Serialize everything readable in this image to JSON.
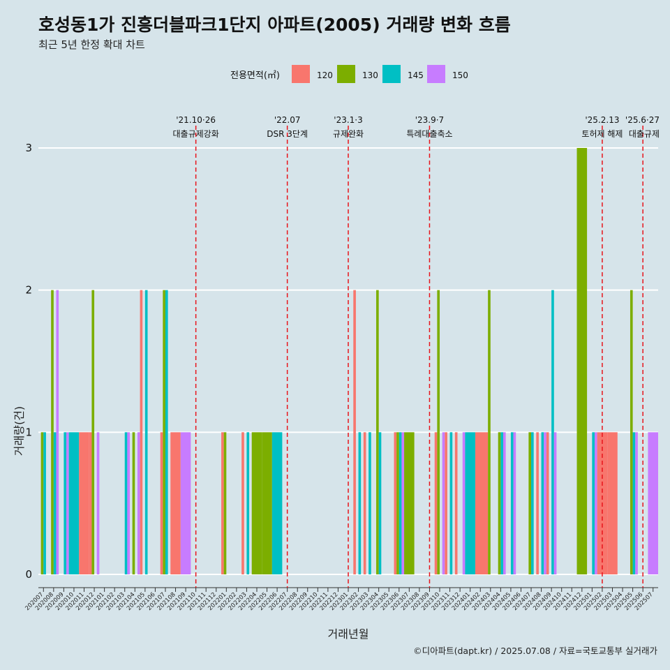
{
  "title": "호성동1가 진흥더블파크1단지 아파트(2005) 거래량 변화 흐름",
  "subtitle": "최근 5년 한정 확대 차트",
  "caption": "©디아파트(dapt.kr) / 2025.07.08 / 자료=국토교통부 실거래가",
  "colors": {
    "120": "#f8766d",
    "130": "#7cae00",
    "145": "#00bfc4",
    "150": "#c77cff"
  },
  "legend": {
    "title": "전용면적(㎡)",
    "position": "top",
    "entries": [
      "120",
      "130",
      "145",
      "150"
    ]
  },
  "chart_data": {
    "type": "bar",
    "xlabel": "거래년월",
    "ylabel": "거래량(건)",
    "ylim": [
      0,
      3
    ],
    "yticks": [
      0,
      1,
      2,
      3
    ],
    "grid": true,
    "categories": [
      "202007",
      "202008",
      "202009",
      "202010",
      "202011",
      "202012",
      "202101",
      "202102",
      "202103",
      "202104",
      "202105",
      "202106",
      "202107",
      "202108",
      "202109",
      "202110",
      "202111",
      "202112",
      "202201",
      "202202",
      "202203",
      "202204",
      "202205",
      "202206",
      "202207",
      "202208",
      "202209",
      "202210",
      "202211",
      "202212",
      "202301",
      "202302",
      "202303",
      "202304",
      "202305",
      "202306",
      "202307",
      "202308",
      "202309",
      "202310",
      "202311",
      "202312",
      "202401",
      "202402",
      "202403",
      "202404",
      "202405",
      "202406",
      "202407",
      "202408",
      "202409",
      "202410",
      "202411",
      "202412",
      "202501",
      "202502",
      "202503",
      "202504",
      "202505",
      "202506",
      "202507"
    ],
    "series": [
      {
        "name": "120",
        "values": [
          0,
          0,
          0,
          0,
          1,
          1,
          0,
          0,
          0,
          0,
          2,
          0,
          1,
          1,
          0,
          0,
          0,
          0,
          1,
          0,
          1,
          0,
          0,
          0,
          0,
          0,
          0,
          0,
          0,
          0,
          0,
          2,
          1,
          0,
          0,
          1,
          0,
          0,
          0,
          1,
          1,
          1,
          0,
          1,
          1,
          0,
          0,
          0,
          0,
          1,
          1,
          0,
          0,
          0,
          0,
          1,
          1,
          0,
          0,
          0,
          0
        ]
      },
      {
        "name": "130",
        "values": [
          1,
          2,
          0,
          0,
          0,
          2,
          0,
          0,
          0,
          1,
          0,
          0,
          2,
          0,
          0,
          0,
          0,
          0,
          1,
          0,
          0,
          1,
          1,
          0,
          0,
          0,
          0,
          0,
          0,
          0,
          0,
          0,
          0,
          2,
          0,
          1,
          1,
          0,
          0,
          2,
          0,
          0,
          0,
          0,
          2,
          1,
          0,
          0,
          1,
          0,
          0,
          0,
          0,
          3,
          0,
          0,
          0,
          0,
          2,
          0,
          0
        ]
      },
      {
        "name": "145",
        "values": [
          1,
          1,
          1,
          1,
          0,
          0,
          0,
          0,
          1,
          0,
          2,
          0,
          2,
          0,
          0,
          0,
          0,
          0,
          0,
          0,
          1,
          0,
          0,
          1,
          0,
          0,
          0,
          0,
          0,
          0,
          0,
          1,
          1,
          1,
          0,
          1,
          0,
          0,
          0,
          0,
          1,
          0,
          1,
          0,
          0,
          1,
          1,
          0,
          1,
          1,
          2,
          0,
          0,
          0,
          1,
          0,
          0,
          0,
          1,
          0,
          0
        ]
      },
      {
        "name": "150",
        "values": [
          0,
          2,
          1,
          0,
          0,
          1,
          0,
          0,
          1,
          1,
          0,
          0,
          0,
          0,
          1,
          0,
          0,
          0,
          0,
          0,
          0,
          0,
          0,
          0,
          0,
          0,
          0,
          0,
          0,
          0,
          0,
          0,
          0,
          0,
          0,
          1,
          0,
          0,
          0,
          1,
          0,
          1,
          0,
          0,
          0,
          1,
          1,
          0,
          0,
          1,
          1,
          0,
          0,
          0,
          1,
          0,
          0,
          0,
          1,
          0,
          1
        ]
      }
    ],
    "annotations": [
      {
        "date": "'21.10·26",
        "label": "대출규제강화",
        "at": 15.5
      },
      {
        "date": "'22.07",
        "label": "DSR 3단계",
        "at": 24.5
      },
      {
        "date": "'23.1·3",
        "label": "규제완화",
        "at": 30.5
      },
      {
        "date": "'23.9·7",
        "label": "특례대출축소",
        "at": 38.5
      },
      {
        "date": "'25.2.13",
        "label": "토허제 해제",
        "at": 55.5
      },
      {
        "date": "'25.6·27",
        "label": "대출규제",
        "at": 59.5
      }
    ]
  }
}
